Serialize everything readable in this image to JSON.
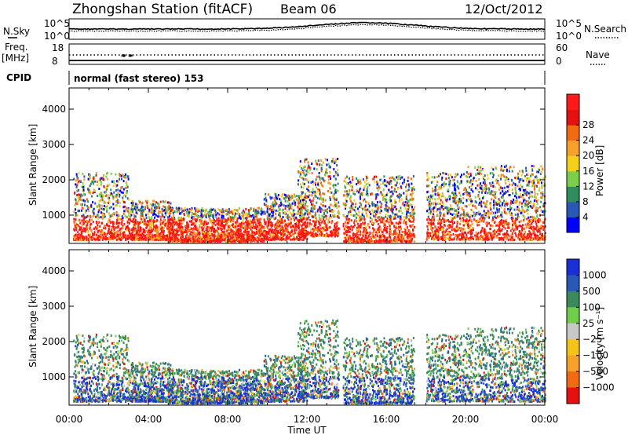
{
  "header": {
    "station": "Zhongshan Station (fitACF)",
    "beam": "Beam 06",
    "date": "12/Oct/2012"
  },
  "noise_panel": {
    "left_label": "N.Sky",
    "right_label": "N.Search",
    "left_ticks": [
      "10^5",
      "10^0"
    ],
    "right_ticks": [
      "10^5",
      "10^0"
    ]
  },
  "freq_panel": {
    "left_label_1": "Freq.",
    "left_label_2": "[MHz]",
    "left_ticks": [
      "18",
      "8"
    ],
    "right_label": "Nave",
    "right_ticks": [
      "60",
      "0"
    ]
  },
  "cpid": {
    "label": "CPID",
    "mode": "normal (fast stereo) 153"
  },
  "chart_data": [
    {
      "type": "heatmap",
      "title": "",
      "xlabel": "",
      "ylabel": "Slant Range [km]",
      "x_ticks": [
        "00:00",
        "04:00",
        "08:00",
        "12:00",
        "16:00",
        "20:00",
        "00:00"
      ],
      "y_ticks": [
        "1000",
        "2000",
        "3000",
        "4000"
      ],
      "ylim": [
        200,
        4600
      ],
      "colorbar": {
        "label": "Power [dB]",
        "ticks": [
          "4",
          "8",
          "12",
          "16",
          "20",
          "24",
          "28"
        ],
        "colors": [
          "#0000ff",
          "#2a59b5",
          "#2f8d5d",
          "#7bcf4a",
          "#f4d018",
          "#f7a12a",
          "#f26a12",
          "#e51010",
          "#ff1a1a"
        ]
      },
      "data_description": "Backscatter power vs time and slant range, 00:00-24:00 UT"
    },
    {
      "type": "heatmap",
      "title": "",
      "xlabel": "Time UT",
      "ylabel": "Slant Range [km]",
      "x_ticks": [
        "00:00",
        "04:00",
        "08:00",
        "12:00",
        "16:00",
        "20:00",
        "00:00"
      ],
      "y_ticks": [
        "1000",
        "2000",
        "3000",
        "4000"
      ],
      "ylim": [
        200,
        4600
      ],
      "colorbar": {
        "label": "Velocity [m s⁻¹]",
        "ticks": [
          "1000",
          "500",
          "100",
          "25",
          "−25",
          "−100",
          "−500",
          "−1000"
        ],
        "colors": [
          "#1a2fd6",
          "#2a59b5",
          "#3b8a5e",
          "#6fcf4a",
          "#c8c8c8",
          "#f4c418",
          "#f7a12a",
          "#f26a12",
          "#e51010"
        ]
      }
    }
  ]
}
